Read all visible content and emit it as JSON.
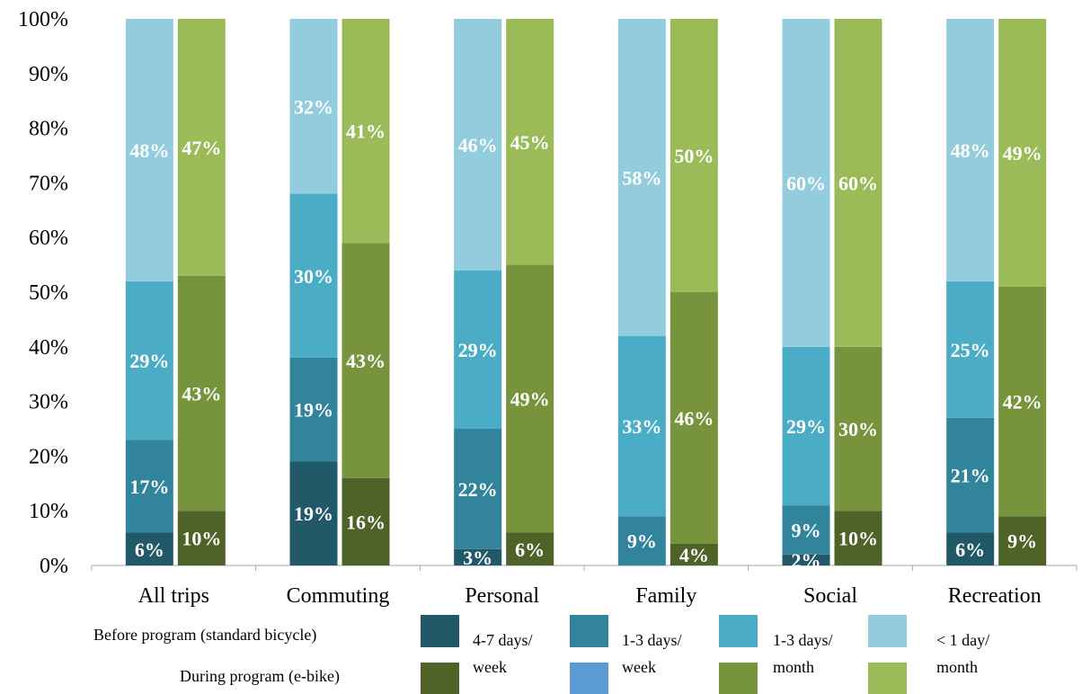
{
  "chart_data": {
    "type": "bar",
    "stacked": true,
    "percent_stacked": true,
    "categories": [
      "All trips",
      "Commuting",
      "Personal",
      "Family",
      "Social",
      "Recreation"
    ],
    "yticks": [
      "0%",
      "10%",
      "20%",
      "30%",
      "40%",
      "50%",
      "60%",
      "70%",
      "80%",
      "90%",
      "100%"
    ],
    "ylim": [
      0,
      100
    ],
    "grid": false,
    "groups": [
      {
        "name": "Before program (standard bicycle)",
        "segments": [
          {
            "name": "4-7 days/ week",
            "color": "#215968",
            "values": [
              6,
              19,
              3,
              0,
              2,
              6
            ],
            "labels": [
              "6%",
              "19%",
              "3%",
              "",
              "2%",
              "6%"
            ]
          },
          {
            "name": "1-3 days/ week",
            "color": "#31849b",
            "values": [
              17,
              19,
              22,
              9,
              9,
              21
            ],
            "labels": [
              "17%",
              "19%",
              "22%",
              "9%",
              "9%",
              "21%"
            ]
          },
          {
            "name": "1-3 days/ month",
            "color": "#4bacc6",
            "values": [
              29,
              30,
              29,
              33,
              29,
              25
            ],
            "labels": [
              "29%",
              "30%",
              "29%",
              "33%",
              "29%",
              "25%"
            ]
          },
          {
            "name": "< 1 day/ month",
            "color": "#93cddd",
            "values": [
              48,
              32,
              46,
              58,
              60,
              48
            ],
            "labels": [
              "48%",
              "32%",
              "46%",
              "58%",
              "60%",
              "48%"
            ]
          }
        ]
      },
      {
        "name": "During program (e-bike)",
        "segments": [
          {
            "name": "4-7 days/ week",
            "color": "#4f6228",
            "values": [
              10,
              16,
              6,
              4,
              10,
              9
            ],
            "labels": [
              "10%",
              "16%",
              "6%",
              "4%",
              "10%",
              "9%"
            ]
          },
          {
            "name": "1-3 days/ week",
            "color": "#5b9bd5",
            "values": [
              0,
              0,
              0,
              0,
              0,
              0
            ],
            "labels": [
              "",
              "",
              "",
              "",
              "",
              ""
            ]
          },
          {
            "name": "1-3 days/ month",
            "color": "#77933c",
            "values": [
              43,
              43,
              49,
              46,
              30,
              42
            ],
            "labels": [
              "43%",
              "43%",
              "49%",
              "46%",
              "30%",
              "42%"
            ]
          },
          {
            "name": "< 1 day/ month",
            "color": "#9bbb59",
            "values": [
              47,
              41,
              45,
              50,
              60,
              49
            ],
            "labels": [
              "47%",
              "41%",
              "45%",
              "50%",
              "60%",
              "49%"
            ]
          }
        ]
      }
    ],
    "legend": {
      "placement": "bottom",
      "row_labels": [
        "Before program (standard bicycle)",
        "During program (e-bike)"
      ],
      "columns": [
        {
          "label_line1": "4-7 days/",
          "label_line2": "week"
        },
        {
          "label_line1": "1-3 days/",
          "label_line2": "week"
        },
        {
          "label_line1": "1-3 days/",
          "label_line2": "month"
        },
        {
          "label_line1": "< 1 day/",
          "label_line2": "month"
        }
      ]
    }
  }
}
